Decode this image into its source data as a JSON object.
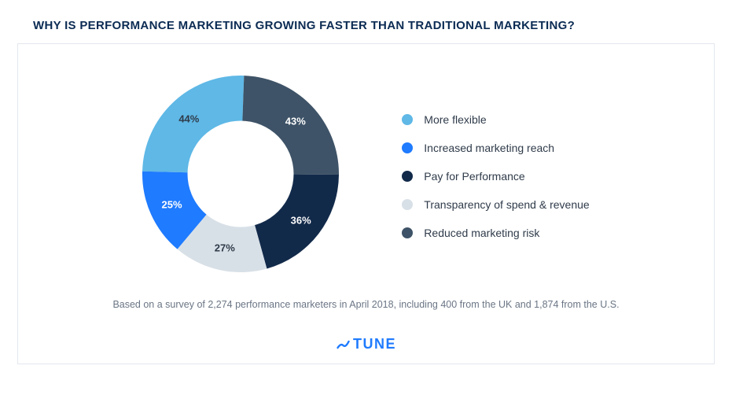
{
  "title": "WHY IS PERFORMANCE MARKETING GROWING FASTER THAN TRADITIONAL MARKETING?",
  "chart": {
    "type": "donut",
    "background_color": "#ffffff",
    "panel_border_color": "#e3e7ed",
    "inner_radius_ratio": 0.54,
    "slice_label_fontsize": 13,
    "slice_label_fontweight": 600,
    "slices": [
      {
        "key": "more_flexible",
        "label": "More flexible",
        "value": 44,
        "display": "44%",
        "color": "#5fb8e6",
        "text_color": "#2f3b4a"
      },
      {
        "key": "reduced_risk",
        "label": "Reduced marketing risk",
        "value": 43,
        "display": "43%",
        "color": "#3e5367",
        "text_color": "#ffffff"
      },
      {
        "key": "pay_for_performance",
        "label": "Pay for Performance",
        "value": 36,
        "display": "36%",
        "color": "#122a4a",
        "text_color": "#ffffff"
      },
      {
        "key": "transparency",
        "label": "Transparency of spend & revenue",
        "value": 27,
        "display": "27%",
        "color": "#d8e0e7",
        "text_color": "#2f3b4a"
      },
      {
        "key": "increased_reach",
        "label": "Increased marketing reach",
        "value": 25,
        "display": "25%",
        "color": "#1f7bff",
        "text_color": "#ffffff"
      }
    ],
    "legend_order": [
      "more_flexible",
      "increased_reach",
      "pay_for_performance",
      "transparency",
      "reduced_risk"
    ],
    "legend_fontsize": 14,
    "legend_text_color": "#2f3b4a"
  },
  "footnote": "Based on a survey of 2,274 performance marketers in April 2018, including 400 from the UK and 1,874 from the U.S.",
  "brand": {
    "text": "TUNE",
    "color": "#1f7bff"
  }
}
